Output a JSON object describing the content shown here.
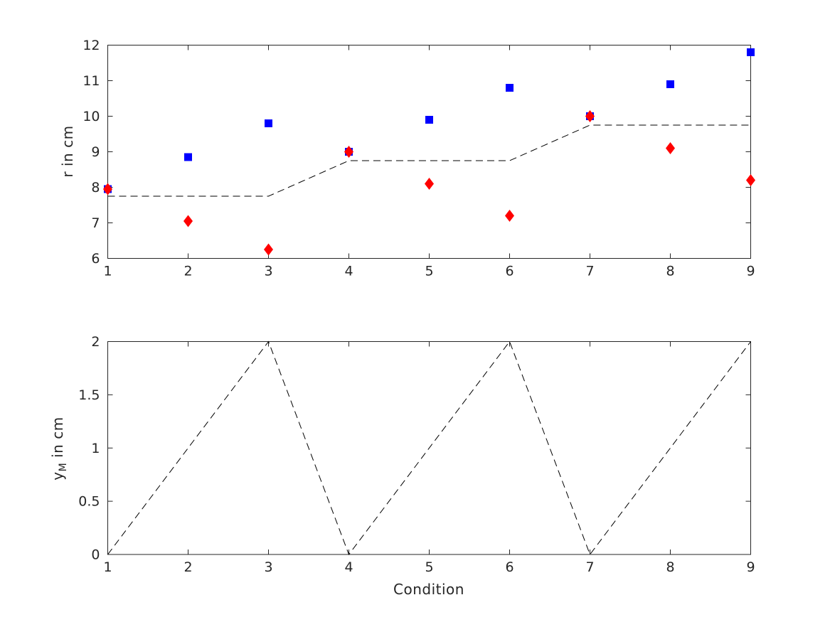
{
  "style": {
    "background": "#ffffff",
    "axis_color": "#262626",
    "text_color": "#262626",
    "dashed_line_color": "#000000",
    "square_marker_color": "#0000ff",
    "diamond_marker_color": "#ff0000"
  },
  "chart_data": [
    {
      "type": "scatter",
      "title": "",
      "xlabel": "",
      "ylabel": "r in cm",
      "xlim": [
        1,
        9
      ],
      "ylim": [
        6,
        12
      ],
      "grid": false,
      "legend": null,
      "xtick_values": [
        1,
        2,
        3,
        4,
        5,
        6,
        7,
        8,
        9
      ],
      "xtick_labels": [
        "1",
        "2",
        "3",
        "4",
        "5",
        "6",
        "7",
        "8",
        "9"
      ],
      "ytick_values": [
        6,
        7,
        8,
        9,
        10,
        11,
        12
      ],
      "ytick_labels": [
        "6",
        "7",
        "8",
        "9",
        "10",
        "11",
        "12"
      ],
      "series": [
        {
          "name": "reference-dashed-step-line",
          "type": "line",
          "linestyle": "dashed",
          "color": "#000000",
          "x": [
            1,
            3,
            4,
            6,
            7,
            9
          ],
          "y": [
            7.75,
            7.75,
            8.75,
            8.75,
            9.75,
            9.75
          ]
        },
        {
          "name": "blue-squares",
          "type": "scatter",
          "marker": "square",
          "color": "#0000ff",
          "x": [
            1,
            2,
            3,
            4,
            5,
            6,
            7,
            8,
            9
          ],
          "y": [
            7.95,
            8.85,
            9.8,
            9.0,
            9.9,
            10.8,
            10.0,
            10.9,
            11.8
          ]
        },
        {
          "name": "red-diamonds",
          "type": "scatter",
          "marker": "diamond",
          "color": "#ff0000",
          "x": [
            1,
            2,
            3,
            4,
            5,
            6,
            7,
            8,
            9
          ],
          "y": [
            7.95,
            7.05,
            6.25,
            9.0,
            8.1,
            7.2,
            10.0,
            9.1,
            8.2
          ]
        }
      ]
    },
    {
      "type": "line",
      "title": "",
      "xlabel": "Condition",
      "ylabel": "y_M in cm",
      "ylabel_base": "y",
      "ylabel_sub": "M",
      "ylabel_rest": " in cm",
      "xlim": [
        1,
        9
      ],
      "ylim": [
        0,
        2
      ],
      "grid": false,
      "legend": null,
      "xtick_values": [
        1,
        2,
        3,
        4,
        5,
        6,
        7,
        8,
        9
      ],
      "xtick_labels": [
        "1",
        "2",
        "3",
        "4",
        "5",
        "6",
        "7",
        "8",
        "9"
      ],
      "ytick_values": [
        0,
        0.5,
        1,
        1.5,
        2
      ],
      "ytick_labels": [
        "0",
        "0.5",
        "1",
        "1.5",
        "2"
      ],
      "series": [
        {
          "name": "zigzag-dashed-line",
          "type": "line",
          "linestyle": "dashed",
          "color": "#000000",
          "x": [
            1,
            3,
            4,
            6,
            7,
            9
          ],
          "y": [
            0,
            2,
            0,
            2,
            0,
            2
          ]
        }
      ]
    }
  ]
}
